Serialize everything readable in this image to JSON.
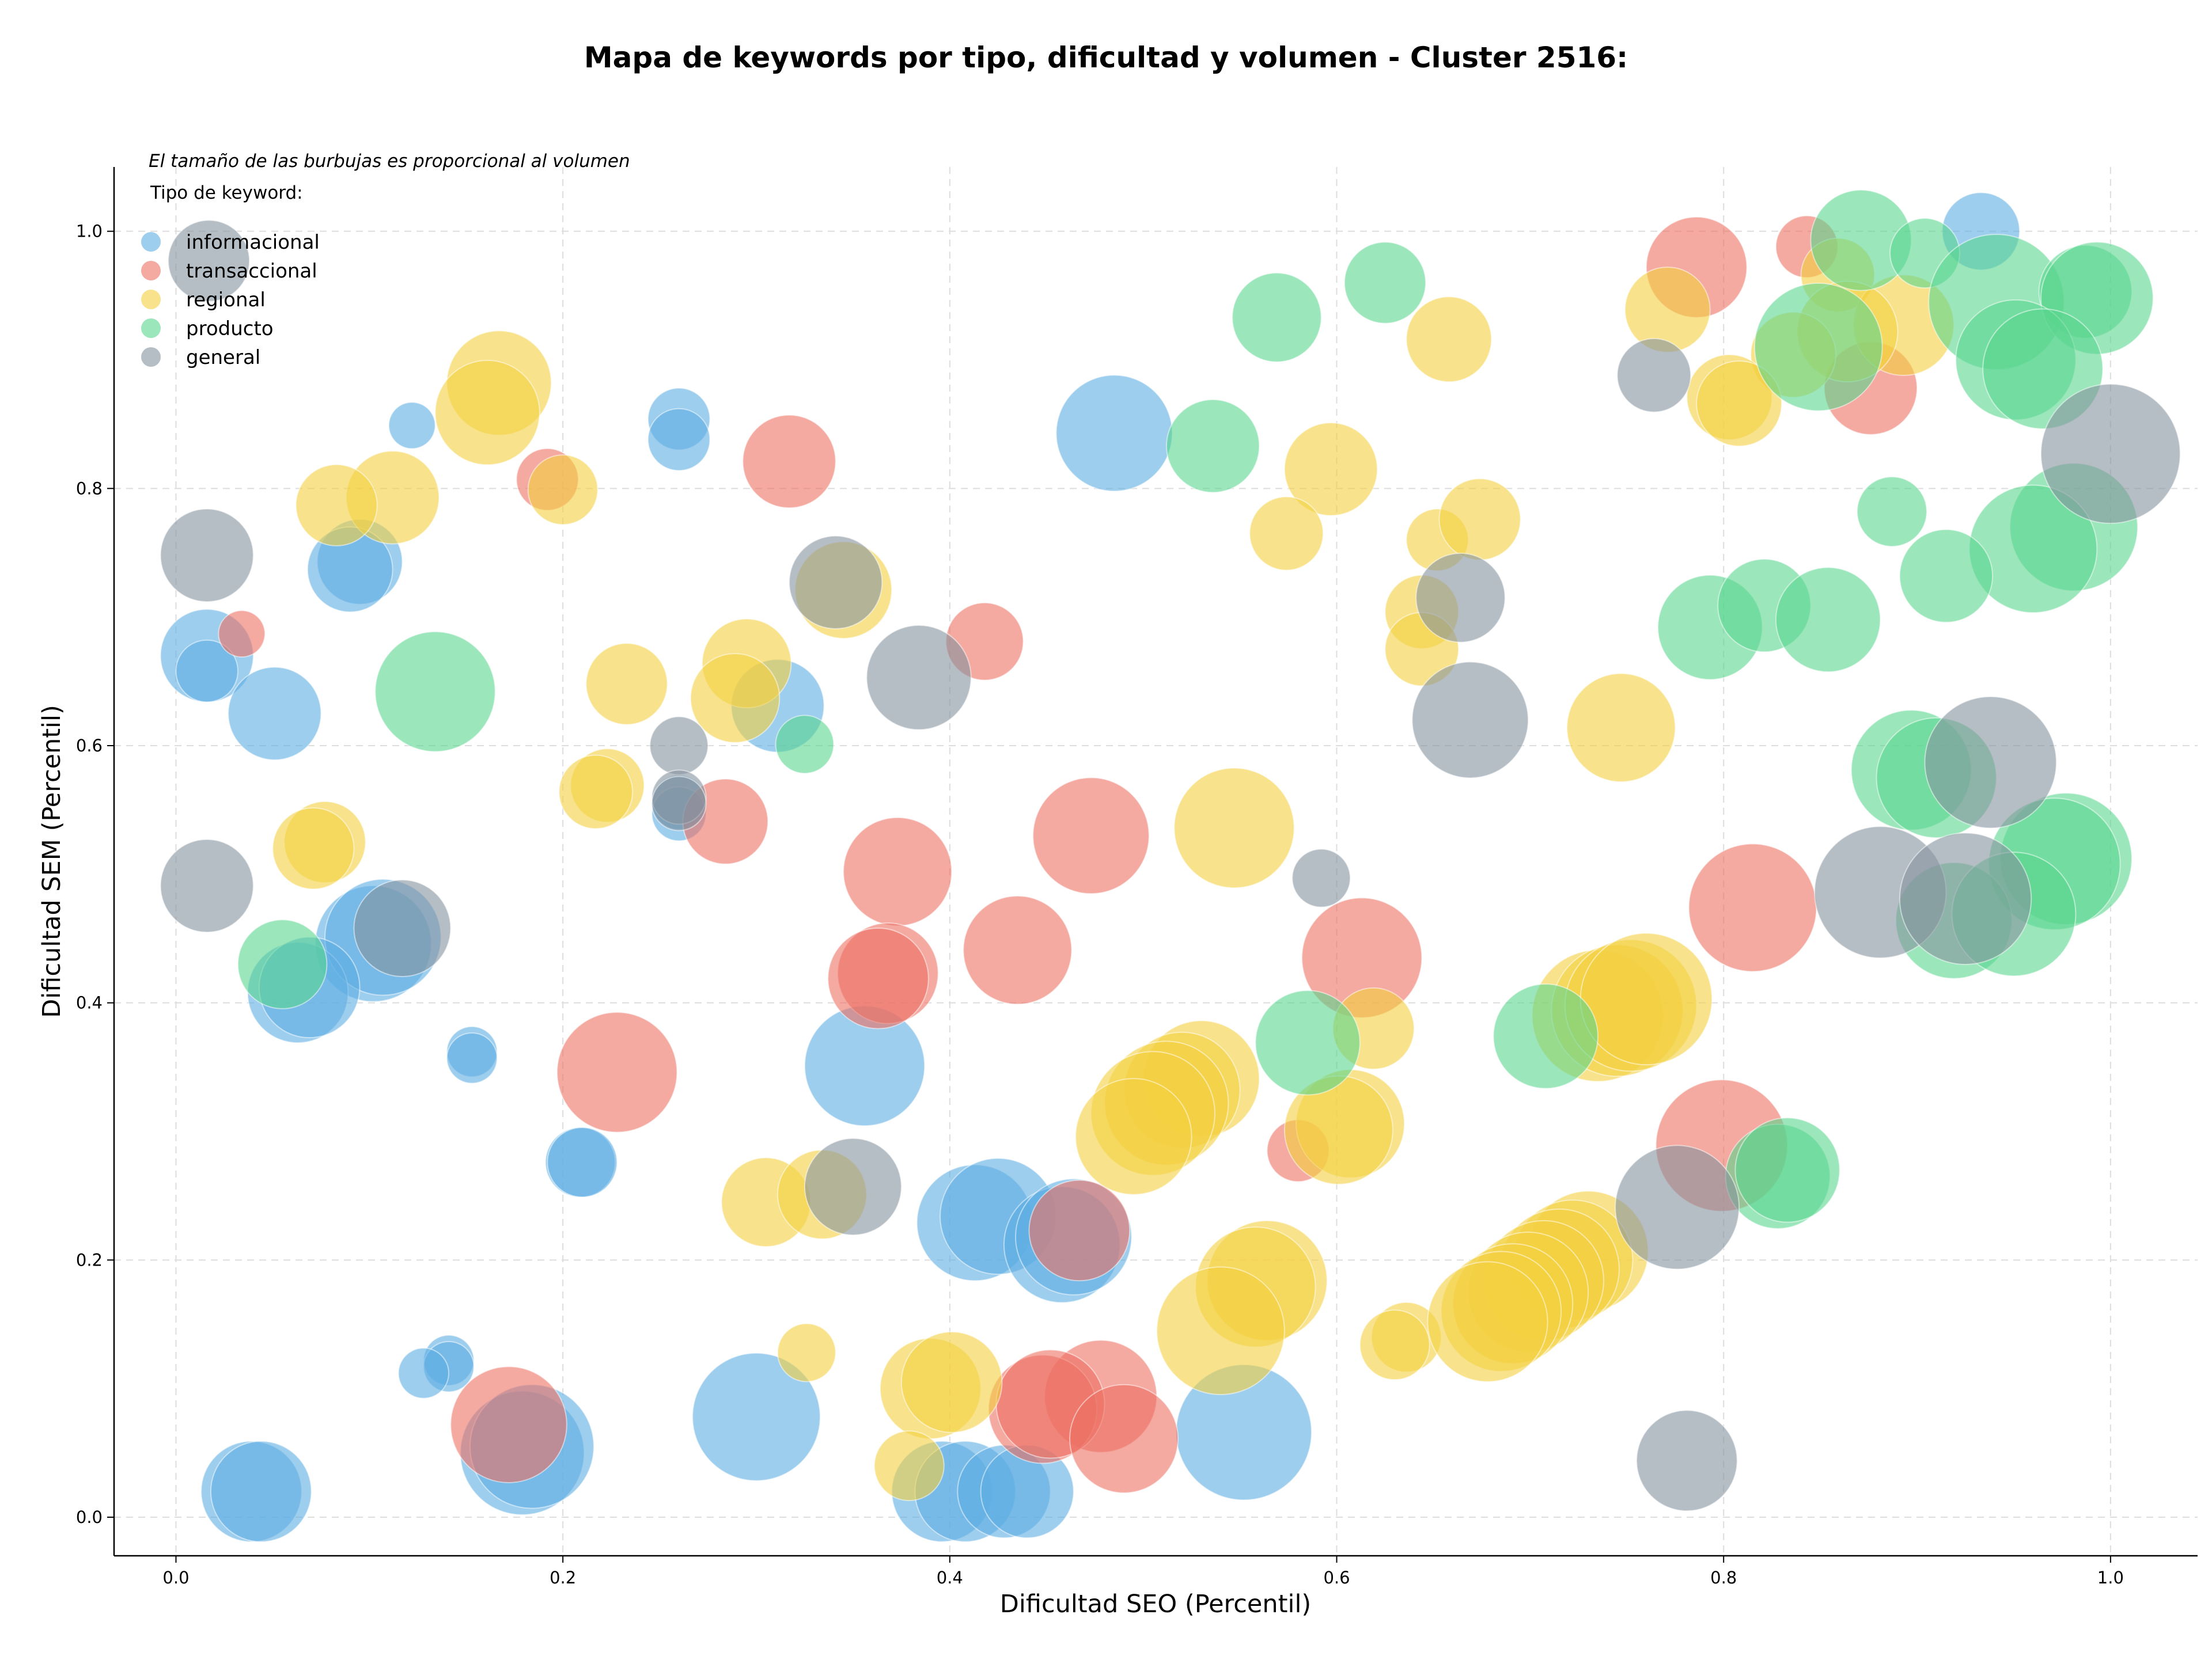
{
  "chart_data": {
    "type": "scatter",
    "title": "Mapa de keywords por tipo, dificultad y volumen - Cluster 2516:",
    "xlabel": "Dificultad SEO (Percentil)",
    "ylabel": "Dificultad SEM (Percentil)",
    "note": "El tamaño de las burbujas es proporcional al volumen",
    "xlim": [
      -0.032,
      1.045
    ],
    "ylim": [
      -0.03,
      1.05
    ],
    "xticks": [
      0.0,
      0.2,
      0.4,
      0.6,
      0.8,
      1.0
    ],
    "yticks": [
      0.0,
      0.2,
      0.4,
      0.6,
      0.8,
      1.0
    ],
    "xtick_labels": [
      "0.0",
      "0.2",
      "0.4",
      "0.6",
      "0.8",
      "1.0"
    ],
    "ytick_labels": [
      "0.0",
      "0.2",
      "0.4",
      "0.6",
      "0.8",
      "1.0"
    ],
    "grid": true,
    "legend": {
      "title": "Tipo de keyword:",
      "placement": "top-left"
    },
    "size_encoding": "volume (relative bubble diameter in data units of x)",
    "series": [
      {
        "name": "informacional",
        "color": "#5dade2",
        "points": [
          [
            0.933,
            1.0,
            0.02
          ],
          [
            0.485,
            0.843,
            0.03
          ],
          [
            0.122,
            0.849,
            0.012
          ],
          [
            0.26,
            0.854,
            0.016
          ],
          [
            0.26,
            0.838,
            0.016
          ],
          [
            0.095,
            0.743,
            0.022
          ],
          [
            0.09,
            0.737,
            0.022
          ],
          [
            0.016,
            0.67,
            0.024
          ],
          [
            0.016,
            0.658,
            0.016
          ],
          [
            0.051,
            0.625,
            0.024
          ],
          [
            0.311,
            0.631,
            0.024
          ],
          [
            0.26,
            0.556,
            0.014
          ],
          [
            0.26,
            0.547,
            0.014
          ],
          [
            0.102,
            0.446,
            0.03
          ],
          [
            0.107,
            0.451,
            0.03
          ],
          [
            0.063,
            0.408,
            0.026
          ],
          [
            0.069,
            0.412,
            0.026
          ],
          [
            0.153,
            0.362,
            0.013
          ],
          [
            0.153,
            0.357,
            0.013
          ],
          [
            0.356,
            0.351,
            0.031
          ],
          [
            0.209,
            0.276,
            0.018
          ],
          [
            0.21,
            0.276,
            0.018
          ],
          [
            0.413,
            0.229,
            0.03
          ],
          [
            0.425,
            0.234,
            0.03
          ],
          [
            0.458,
            0.212,
            0.03
          ],
          [
            0.464,
            0.218,
            0.03
          ],
          [
            0.141,
            0.122,
            0.013
          ],
          [
            0.141,
            0.117,
            0.013
          ],
          [
            0.128,
            0.112,
            0.013
          ],
          [
            0.3,
            0.078,
            0.033
          ],
          [
            0.552,
            0.066,
            0.035
          ],
          [
            0.179,
            0.05,
            0.032
          ],
          [
            0.184,
            0.055,
            0.032
          ],
          [
            0.039,
            0.02,
            0.026
          ],
          [
            0.044,
            0.02,
            0.026
          ],
          [
            0.396,
            0.02,
            0.026
          ],
          [
            0.408,
            0.02,
            0.026
          ],
          [
            0.428,
            0.02,
            0.024
          ],
          [
            0.44,
            0.02,
            0.024
          ]
        ]
      },
      {
        "name": "transaccional",
        "color": "#ec7063",
        "points": [
          [
            0.786,
            0.972,
            0.026
          ],
          [
            0.843,
            0.988,
            0.016
          ],
          [
            0.876,
            0.878,
            0.024
          ],
          [
            0.317,
            0.821,
            0.024
          ],
          [
            0.192,
            0.807,
            0.016
          ],
          [
            0.034,
            0.687,
            0.012
          ],
          [
            0.418,
            0.681,
            0.02
          ],
          [
            0.284,
            0.541,
            0.022
          ],
          [
            0.473,
            0.53,
            0.03
          ],
          [
            0.373,
            0.502,
            0.028
          ],
          [
            0.815,
            0.474,
            0.033
          ],
          [
            0.613,
            0.435,
            0.031
          ],
          [
            0.435,
            0.441,
            0.028
          ],
          [
            0.368,
            0.423,
            0.026
          ],
          [
            0.363,
            0.419,
            0.026
          ],
          [
            0.228,
            0.346,
            0.031
          ],
          [
            0.58,
            0.285,
            0.016
          ],
          [
            0.799,
            0.289,
            0.034
          ],
          [
            0.467,
            0.223,
            0.026
          ],
          [
            0.172,
            0.072,
            0.03
          ],
          [
            0.478,
            0.094,
            0.029
          ],
          [
            0.448,
            0.084,
            0.028
          ],
          [
            0.452,
            0.088,
            0.028
          ],
          [
            0.49,
            0.061,
            0.028
          ]
        ]
      },
      {
        "name": "regional",
        "color": "#f4d03f",
        "points": [
          [
            0.859,
            0.966,
            0.019
          ],
          [
            0.771,
            0.939,
            0.022
          ],
          [
            0.658,
            0.916,
            0.022
          ],
          [
            0.893,
            0.927,
            0.026
          ],
          [
            0.864,
            0.922,
            0.026
          ],
          [
            0.836,
            0.904,
            0.022
          ],
          [
            0.803,
            0.871,
            0.022
          ],
          [
            0.808,
            0.866,
            0.022
          ],
          [
            0.167,
            0.882,
            0.027
          ],
          [
            0.161,
            0.859,
            0.027
          ],
          [
            0.597,
            0.815,
            0.024
          ],
          [
            0.112,
            0.793,
            0.024
          ],
          [
            0.083,
            0.787,
            0.021
          ],
          [
            0.2,
            0.799,
            0.018
          ],
          [
            0.574,
            0.765,
            0.019
          ],
          [
            0.652,
            0.76,
            0.016
          ],
          [
            0.674,
            0.776,
            0.021
          ],
          [
            0.345,
            0.721,
            0.025
          ],
          [
            0.644,
            0.704,
            0.019
          ],
          [
            0.644,
            0.675,
            0.019
          ],
          [
            0.233,
            0.648,
            0.021
          ],
          [
            0.295,
            0.664,
            0.023
          ],
          [
            0.289,
            0.637,
            0.023
          ],
          [
            0.747,
            0.614,
            0.028
          ],
          [
            0.223,
            0.569,
            0.019
          ],
          [
            0.217,
            0.564,
            0.019
          ],
          [
            0.547,
            0.536,
            0.031
          ],
          [
            0.077,
            0.525,
            0.021
          ],
          [
            0.071,
            0.52,
            0.021
          ],
          [
            0.619,
            0.38,
            0.021
          ],
          [
            0.735,
            0.39,
            0.034
          ],
          [
            0.745,
            0.394,
            0.034
          ],
          [
            0.752,
            0.398,
            0.034
          ],
          [
            0.76,
            0.403,
            0.034
          ],
          [
            0.53,
            0.341,
            0.03
          ],
          [
            0.52,
            0.332,
            0.03
          ],
          [
            0.512,
            0.322,
            0.032
          ],
          [
            0.505,
            0.314,
            0.032
          ],
          [
            0.495,
            0.296,
            0.03
          ],
          [
            0.607,
            0.306,
            0.028
          ],
          [
            0.601,
            0.301,
            0.028
          ],
          [
            0.305,
            0.245,
            0.023
          ],
          [
            0.334,
            0.251,
            0.023
          ],
          [
            0.564,
            0.184,
            0.031
          ],
          [
            0.558,
            0.179,
            0.031
          ],
          [
            0.54,
            0.145,
            0.033
          ],
          [
            0.636,
            0.14,
            0.018
          ],
          [
            0.63,
            0.134,
            0.018
          ],
          [
            0.326,
            0.128,
            0.015
          ],
          [
            0.73,
            0.207,
            0.031
          ],
          [
            0.722,
            0.2,
            0.031
          ],
          [
            0.715,
            0.193,
            0.031
          ],
          [
            0.707,
            0.184,
            0.031
          ],
          [
            0.699,
            0.175,
            0.031
          ],
          [
            0.691,
            0.166,
            0.031
          ],
          [
            0.685,
            0.16,
            0.031
          ],
          [
            0.678,
            0.152,
            0.031
          ],
          [
            0.39,
            0.1,
            0.026
          ],
          [
            0.401,
            0.105,
            0.026
          ],
          [
            0.379,
            0.04,
            0.018
          ]
        ]
      },
      {
        "name": "producto",
        "color": "#58d68d",
        "points": [
          [
            0.871,
            0.993,
            0.026
          ],
          [
            0.904,
            0.983,
            0.018
          ],
          [
            0.625,
            0.96,
            0.021
          ],
          [
            0.569,
            0.933,
            0.023
          ],
          [
            0.941,
            0.945,
            0.035
          ],
          [
            0.987,
            0.953,
            0.024
          ],
          [
            0.993,
            0.948,
            0.029
          ],
          [
            0.849,
            0.91,
            0.033
          ],
          [
            0.951,
            0.9,
            0.031
          ],
          [
            0.965,
            0.893,
            0.031
          ],
          [
            0.536,
            0.833,
            0.024
          ],
          [
            0.887,
            0.782,
            0.018
          ],
          [
            0.981,
            0.77,
            0.033
          ],
          [
            0.96,
            0.753,
            0.033
          ],
          [
            0.915,
            0.732,
            0.024
          ],
          [
            0.793,
            0.692,
            0.027
          ],
          [
            0.821,
            0.709,
            0.024
          ],
          [
            0.854,
            0.698,
            0.027
          ],
          [
            0.134,
            0.642,
            0.031
          ],
          [
            0.325,
            0.601,
            0.015
          ],
          [
            0.897,
            0.581,
            0.031
          ],
          [
            0.91,
            0.575,
            0.031
          ],
          [
            0.977,
            0.512,
            0.034
          ],
          [
            0.971,
            0.508,
            0.034
          ],
          [
            0.055,
            0.43,
            0.023
          ],
          [
            0.919,
            0.464,
            0.03
          ],
          [
            0.95,
            0.469,
            0.032
          ],
          [
            0.585,
            0.369,
            0.027
          ],
          [
            0.708,
            0.374,
            0.027
          ],
          [
            0.828,
            0.265,
            0.027
          ],
          [
            0.833,
            0.27,
            0.027
          ]
        ]
      },
      {
        "name": "general",
        "color": "#85929e",
        "points": [
          [
            0.017,
            0.977,
            0.021
          ],
          [
            0.764,
            0.888,
            0.019
          ],
          [
            1.0,
            0.827,
            0.036
          ],
          [
            0.016,
            0.748,
            0.024
          ],
          [
            0.341,
            0.727,
            0.024
          ],
          [
            0.664,
            0.715,
            0.023
          ],
          [
            0.384,
            0.653,
            0.027
          ],
          [
            0.669,
            0.62,
            0.03
          ],
          [
            0.938,
            0.587,
            0.034
          ],
          [
            0.26,
            0.6,
            0.015
          ],
          [
            0.26,
            0.56,
            0.014
          ],
          [
            0.26,
            0.555,
            0.014
          ],
          [
            0.592,
            0.497,
            0.015
          ],
          [
            0.016,
            0.491,
            0.024
          ],
          [
            0.881,
            0.486,
            0.034
          ],
          [
            0.925,
            0.481,
            0.034
          ],
          [
            0.117,
            0.458,
            0.025
          ],
          [
            0.35,
            0.257,
            0.025
          ],
          [
            0.776,
            0.241,
            0.032
          ],
          [
            0.781,
            0.044,
            0.026
          ]
        ]
      }
    ]
  }
}
